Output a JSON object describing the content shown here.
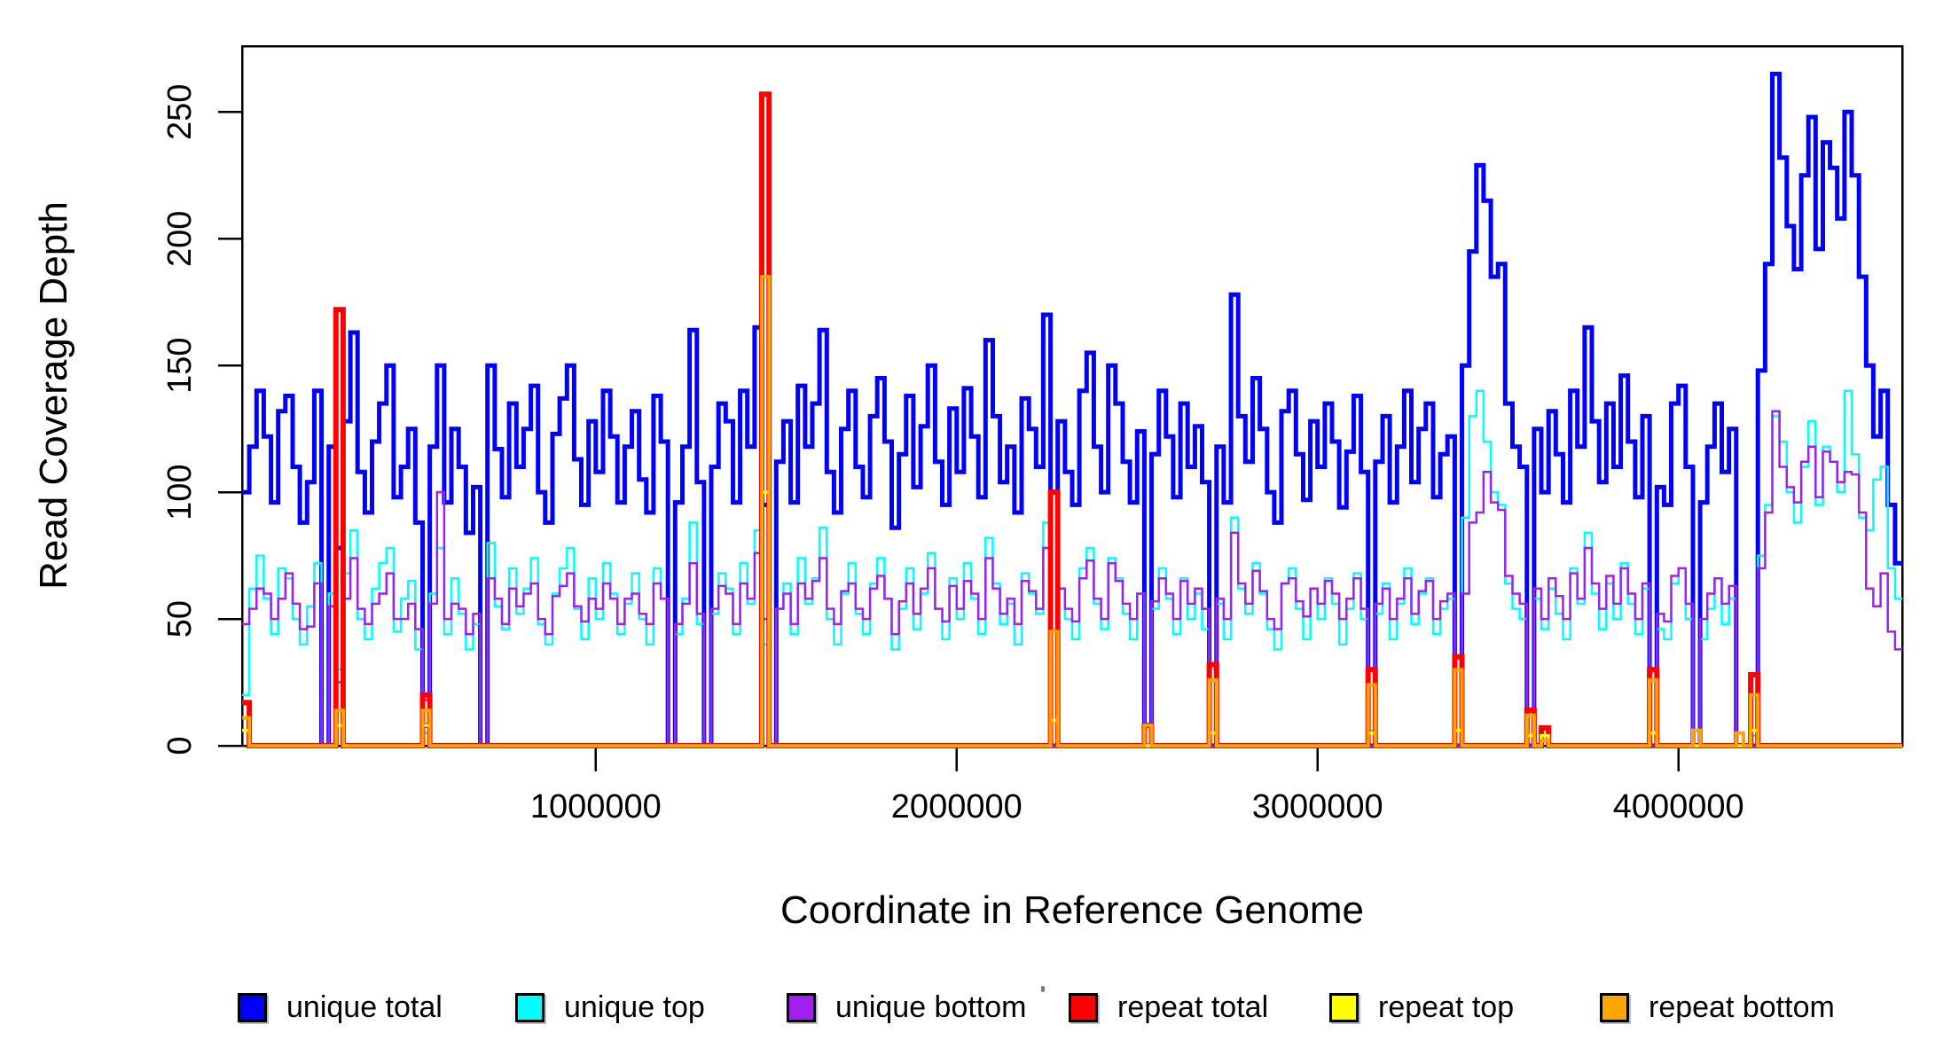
{
  "figure": {
    "y_axis_title": "Read Coverage Depth",
    "x_axis_title": "Coordinate in Reference Genome"
  },
  "chart_data": {
    "type": "line",
    "step": true,
    "title": "",
    "xlabel": "Coordinate in Reference Genome",
    "ylabel": "Read Coverage Depth",
    "grid": false,
    "legend_position": "bottom",
    "x_start": 20000,
    "x_step": 20000,
    "xlim": [
      20000,
      4620000
    ],
    "ylim": [
      0,
      276
    ],
    "x_ticks": [
      {
        "value": 1000000,
        "label": "1000000"
      },
      {
        "value": 2000000,
        "label": "2000000"
      },
      {
        "value": 3000000,
        "label": "3000000"
      },
      {
        "value": 4000000,
        "label": "4000000"
      }
    ],
    "y_ticks": [
      {
        "value": 0,
        "label": "0"
      },
      {
        "value": 50,
        "label": "50"
      },
      {
        "value": 100,
        "label": "100"
      },
      {
        "value": 150,
        "label": "150"
      },
      {
        "value": 200,
        "label": "200"
      },
      {
        "value": 250,
        "label": "250"
      }
    ],
    "series": [
      {
        "name": "unique total",
        "color": "#0000FF",
        "width": 5,
        "values": [
          100,
          118,
          140,
          122,
          96,
          132,
          138,
          110,
          88,
          104,
          140,
          0,
          118,
          78,
          128,
          163,
          108,
          92,
          120,
          135,
          150,
          98,
          110,
          125,
          88,
          8,
          118,
          150,
          96,
          125,
          110,
          84,
          102,
          0,
          150,
          117,
          98,
          135,
          110,
          125,
          142,
          100,
          88,
          123,
          137,
          150,
          113,
          95,
          128,
          108,
          140,
          122,
          96,
          118,
          132,
          105,
          92,
          138,
          120,
          0,
          96,
          118,
          164,
          104,
          0,
          110,
          135,
          128,
          96,
          140,
          118,
          165,
          95,
          0,
          112,
          128,
          96,
          142,
          118,
          135,
          164,
          108,
          92,
          125,
          140,
          110,
          98,
          130,
          145,
          120,
          86,
          115,
          138,
          102,
          126,
          150,
          112,
          95,
          133,
          108,
          141,
          122,
          98,
          160,
          130,
          104,
          118,
          92,
          137,
          125,
          110,
          170,
          0,
          128,
          108,
          95,
          140,
          155,
          118,
          100,
          150,
          135,
          112,
          96,
          124,
          0,
          115,
          140,
          122,
          98,
          135,
          110,
          126,
          104,
          0,
          118,
          96,
          178,
          130,
          112,
          145,
          125,
          100,
          88,
          132,
          140,
          115,
          97,
          128,
          110,
          135,
          120,
          94,
          116,
          138,
          108,
          0,
          112,
          130,
          96,
          118,
          140,
          104,
          125,
          135,
          98,
          115,
          122,
          0,
          150,
          195,
          229,
          215,
          185,
          190,
          135,
          118,
          110,
          0,
          125,
          100,
          132,
          115,
          96,
          140,
          118,
          165,
          128,
          104,
          135,
          110,
          146,
          120,
          98,
          130,
          0,
          102,
          95,
          135,
          142,
          110,
          0,
          96,
          118,
          135,
          108,
          125,
          0,
          0,
          0,
          148,
          190,
          265,
          232,
          205,
          188,
          225,
          248,
          196,
          238,
          228,
          208,
          250,
          225,
          185,
          150,
          122,
          140,
          95,
          72
        ]
      },
      {
        "name": "unique top",
        "color": "#00FFFF",
        "width": 2.5,
        "values": [
          20,
          62,
          75,
          58,
          44,
          70,
          66,
          50,
          40,
          55,
          72,
          0,
          60,
          30,
          68,
          85,
          50,
          42,
          62,
          72,
          78,
          45,
          58,
          65,
          38,
          5,
          60,
          78,
          44,
          66,
          52,
          38,
          48,
          0,
          80,
          55,
          46,
          70,
          52,
          62,
          74,
          48,
          40,
          60,
          70,
          78,
          54,
          42,
          66,
          50,
          72,
          60,
          44,
          56,
          68,
          50,
          40,
          70,
          58,
          0,
          44,
          58,
          88,
          48,
          0,
          52,
          68,
          62,
          44,
          72,
          56,
          85,
          40,
          0,
          54,
          64,
          44,
          74,
          56,
          66,
          86,
          50,
          40,
          60,
          72,
          52,
          44,
          64,
          74,
          58,
          38,
          54,
          70,
          46,
          60,
          76,
          54,
          42,
          66,
          50,
          72,
          58,
          44,
          82,
          64,
          48,
          56,
          40,
          68,
          60,
          52,
          88,
          0,
          62,
          50,
          42,
          70,
          78,
          56,
          46,
          74,
          66,
          52,
          42,
          60,
          0,
          54,
          70,
          58,
          44,
          66,
          50,
          60,
          46,
          0,
          56,
          42,
          90,
          62,
          52,
          72,
          60,
          46,
          38,
          64,
          70,
          54,
          42,
          62,
          50,
          66,
          56,
          40,
          54,
          68,
          50,
          6,
          52,
          64,
          42,
          56,
          70,
          48,
          60,
          66,
          44,
          54,
          58,
          0,
          90,
          130,
          140,
          120,
          100,
          95,
          64,
          54,
          50,
          0,
          58,
          46,
          62,
          52,
          42,
          70,
          56,
          84,
          60,
          46,
          64,
          50,
          72,
          56,
          44,
          62,
          0,
          46,
          42,
          64,
          70,
          50,
          0,
          42,
          54,
          66,
          48,
          58,
          0,
          0,
          4,
          75,
          95,
          130,
          120,
          100,
          88,
          110,
          128,
          95,
          118,
          112,
          100,
          140,
          115,
          90,
          85,
          105,
          110,
          70,
          58
        ]
      },
      {
        "name": "unique bottom",
        "color": "#A020F0",
        "width": 2.5,
        "values": [
          48,
          54,
          62,
          60,
          50,
          58,
          68,
          56,
          46,
          47,
          64,
          0,
          55,
          25,
          58,
          74,
          54,
          48,
          56,
          60,
          68,
          50,
          50,
          56,
          46,
          18,
          56,
          100,
          50,
          56,
          54,
          44,
          52,
          0,
          66,
          58,
          48,
          62,
          55,
          60,
          64,
          50,
          44,
          59,
          63,
          68,
          55,
          49,
          58,
          54,
          64,
          58,
          48,
          58,
          60,
          52,
          48,
          64,
          58,
          0,
          48,
          56,
          72,
          52,
          0,
          54,
          63,
          60,
          48,
          64,
          58,
          76,
          50,
          0,
          54,
          60,
          48,
          64,
          58,
          65,
          74,
          54,
          48,
          61,
          64,
          54,
          50,
          62,
          67,
          58,
          44,
          57,
          64,
          52,
          62,
          70,
          54,
          49,
          63,
          54,
          65,
          60,
          50,
          74,
          62,
          52,
          58,
          48,
          65,
          61,
          54,
          78,
          0,
          62,
          54,
          49,
          66,
          73,
          58,
          50,
          72,
          65,
          56,
          50,
          60,
          0,
          57,
          66,
          60,
          50,
          65,
          56,
          62,
          54,
          0,
          58,
          50,
          84,
          64,
          56,
          69,
          61,
          50,
          46,
          64,
          66,
          57,
          51,
          62,
          56,
          65,
          60,
          50,
          58,
          66,
          54,
          0,
          56,
          62,
          50,
          58,
          66,
          52,
          61,
          65,
          50,
          57,
          60,
          0,
          60,
          88,
          92,
          108,
          96,
          93,
          67,
          60,
          56,
          0,
          62,
          50,
          66,
          59,
          50,
          68,
          58,
          78,
          64,
          54,
          67,
          56,
          70,
          60,
          50,
          64,
          0,
          52,
          49,
          67,
          70,
          56,
          0,
          50,
          60,
          66,
          56,
          63,
          0,
          0,
          0,
          70,
          92,
          132,
          110,
          102,
          96,
          112,
          118,
          98,
          116,
          112,
          104,
          108,
          107,
          92,
          62,
          55,
          68,
          45,
          38
        ]
      },
      {
        "name": "repeat total",
        "color": "#FF0000",
        "width": 6,
        "sparse": {
          "0": 17,
          "13": 172,
          "25": 20,
          "72": 257,
          "112": 100,
          "125": 8,
          "134": 32,
          "156": 30,
          "168": 35,
          "178": 14,
          "180": 7,
          "195": 30,
          "209": 28
        }
      },
      {
        "name": "repeat top",
        "color": "#FFFF00",
        "width": 3.5,
        "sparse": {
          "0": 6,
          "13": 8,
          "25": 8,
          "72": 100,
          "112": 10,
          "134": 5,
          "156": 5,
          "168": 6,
          "178": 4,
          "180": 4,
          "195": 5,
          "209": 6
        }
      },
      {
        "name": "repeat bottom",
        "color": "#FFA500",
        "width": 4,
        "sparse": {
          "0": 11,
          "13": 14,
          "25": 14,
          "72": 185,
          "112": 45,
          "125": 8,
          "134": 26,
          "156": 24,
          "168": 30,
          "178": 12,
          "180": 2,
          "195": 26,
          "201": 6,
          "207": 5,
          "209": 20
        }
      }
    ]
  }
}
